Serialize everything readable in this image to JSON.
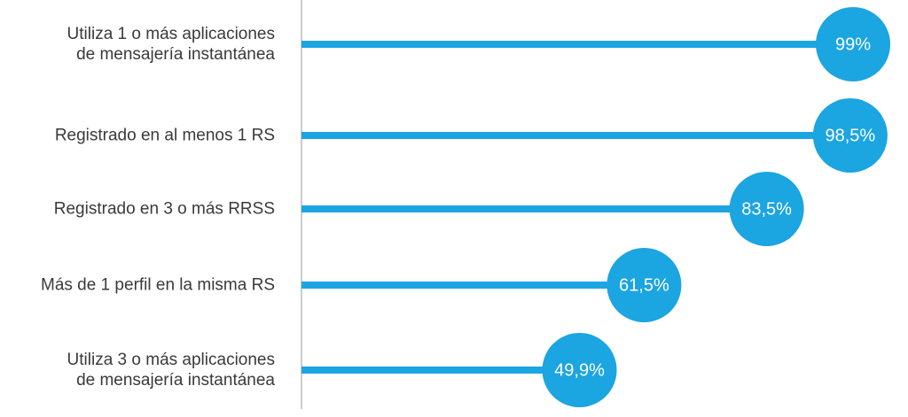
{
  "chart_data": {
    "type": "lollipop",
    "categories": [
      "Utiliza 1 o más aplicaciones\nde mensajería instantánea",
      "Registrado en al menos 1 RS",
      "Registrado en 3 o más RRSS",
      "Más de 1 perfil en la misma RS",
      "Utiliza 3 o más aplicaciones\nde mensajería instantánea"
    ],
    "values": [
      99,
      98.5,
      83.5,
      61.5,
      49.9
    ],
    "value_labels": [
      "99%",
      "98,5%",
      "83,5%",
      "61,5%",
      "49,9%"
    ],
    "color": "#1ba5e1"
  }
}
